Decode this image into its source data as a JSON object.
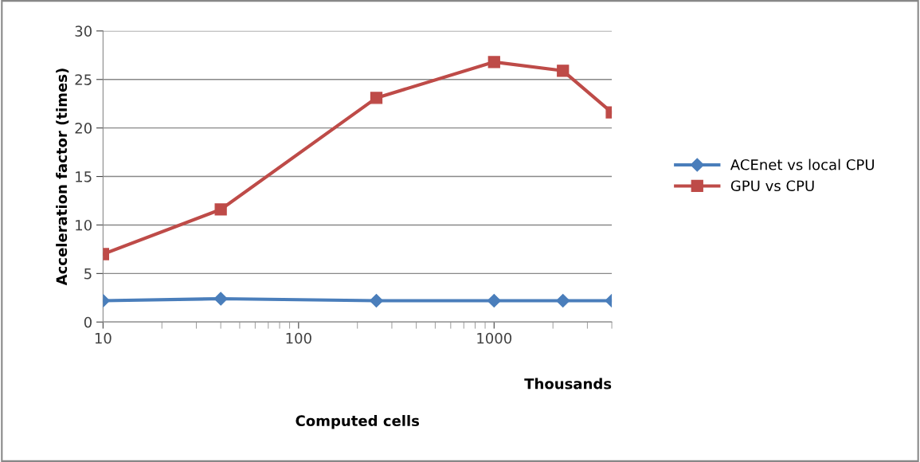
{
  "chart_data": {
    "type": "line",
    "xlabel": "Computed cells",
    "ylabel": "Acceleration factor (times)",
    "x": [
      10,
      40,
      250,
      1000,
      2250,
      4000
    ],
    "series": [
      {
        "name": "ACEnet vs local CPU",
        "color": "#4a7ebb",
        "marker": "diamond",
        "values": [
          2.2,
          2.4,
          2.2,
          2.2,
          2.2,
          2.2
        ]
      },
      {
        "name": "GPU vs CPU",
        "color": "#be4b48",
        "marker": "square",
        "values": [
          7.0,
          11.6,
          23.1,
          26.8,
          25.9,
          21.6
        ]
      }
    ],
    "log": "x",
    "xlim": [
      10,
      4000
    ],
    "xticks": [
      10,
      100,
      1000
    ],
    "ylim": [
      0,
      30
    ],
    "yticks": [
      0,
      5,
      10,
      15,
      20,
      25,
      30
    ],
    "grid": "y",
    "legend": "right",
    "annotations": [
      "Thousands"
    ]
  }
}
